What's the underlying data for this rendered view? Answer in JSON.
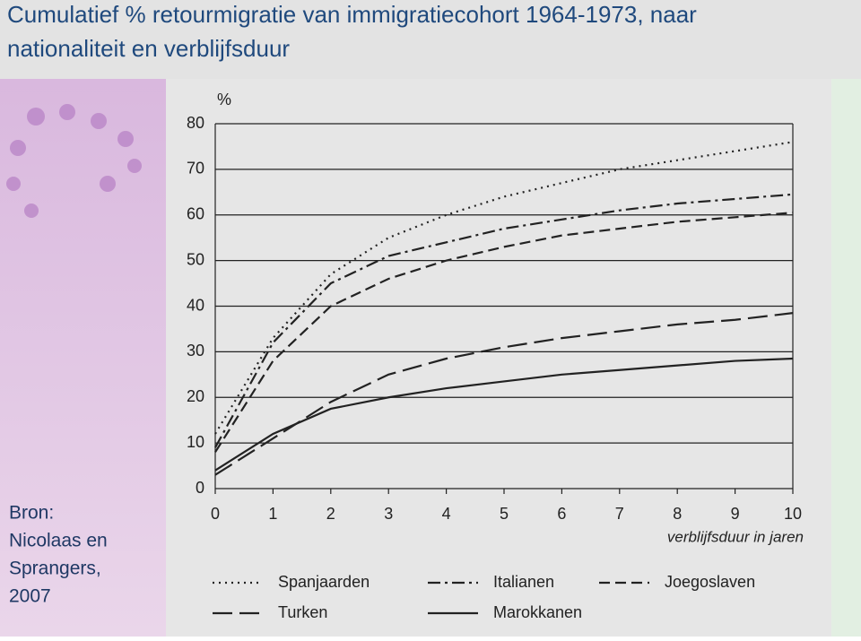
{
  "title": [
    "Cumulatief % retourmigratie van immigratiecohort 1964-1973, naar",
    "nationaliteit en verblijfsduur"
  ],
  "source": [
    "Bron:",
    "Nicolaas en",
    "Sprangers,",
    "2007"
  ],
  "chart_data": {
    "type": "line",
    "y_label": "%",
    "x_label": "verblijfsduur in jaren",
    "x": [
      0,
      1,
      2,
      3,
      4,
      5,
      6,
      7,
      8,
      9,
      10
    ],
    "xlim": [
      0,
      10
    ],
    "xticks": [
      0,
      1,
      2,
      3,
      4,
      5,
      6,
      7,
      8,
      9,
      10
    ],
    "ylim": [
      0,
      80
    ],
    "yticks": [
      0,
      10,
      20,
      30,
      40,
      50,
      60,
      70,
      80
    ],
    "grid": true,
    "series": [
      {
        "name": "Spanjaarden",
        "color": "#222222",
        "dash": "2 5",
        "values": [
          12,
          33,
          47,
          55,
          60,
          64,
          67,
          70,
          72,
          74,
          76
        ]
      },
      {
        "name": "Italianen",
        "color": "#222222",
        "dash": "14 5 3 5",
        "values": [
          9,
          32,
          45,
          51,
          54,
          57,
          59,
          61,
          62.5,
          63.5,
          64.5
        ]
      },
      {
        "name": "Joegoslaven",
        "color": "#222222",
        "dash": "12 6",
        "values": [
          8,
          28,
          40,
          46,
          50,
          53,
          55.5,
          57,
          58.5,
          59.5,
          60.5
        ]
      },
      {
        "name": "Turken",
        "color": "#222222",
        "dash": "22 8",
        "values": [
          3,
          11,
          19,
          25,
          28.5,
          31,
          33,
          34.5,
          36,
          37,
          38.5
        ]
      },
      {
        "name": "Marokkanen",
        "color": "#222222",
        "dash": "none",
        "values": [
          4,
          12,
          17.5,
          20,
          22,
          23.5,
          25,
          26,
          27,
          28,
          28.5
        ]
      }
    ]
  }
}
